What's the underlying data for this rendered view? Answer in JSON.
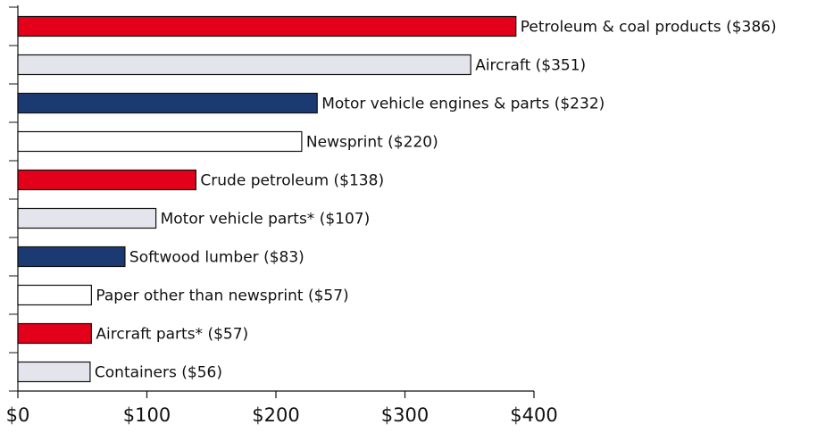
{
  "chart_data": {
    "type": "bar",
    "orientation": "horizontal",
    "categories": [
      "Petroleum & coal products ($386)",
      "Aircraft ($351)",
      "Motor vehicle engines & parts ($232)",
      "Newsprint ($220)",
      "Crude petroleum ($138)",
      "Motor vehicle parts* ($107)",
      "Softwood lumber ($83)",
      "Paper other than newsprint ($57)",
      "Aircraft parts* ($57)",
      "Containers ($56)"
    ],
    "values": [
      386,
      351,
      232,
      220,
      138,
      107,
      83,
      57,
      57,
      56
    ],
    "colors": [
      "#e2001a",
      "#e4e4ec",
      "#1c3a72",
      "#ffffff",
      "#e2001a",
      "#e4e4ec",
      "#1c3a72",
      "#ffffff",
      "#e2001a",
      "#e4e4ec"
    ],
    "xlim": [
      0,
      400
    ],
    "xticks": [
      {
        "value": 0,
        "label": "$0"
      },
      {
        "value": 100,
        "label": "$100"
      },
      {
        "value": 200,
        "label": "$200"
      },
      {
        "value": 300,
        "label": "$300"
      },
      {
        "value": 400,
        "label": "$400"
      }
    ],
    "grid": false
  }
}
